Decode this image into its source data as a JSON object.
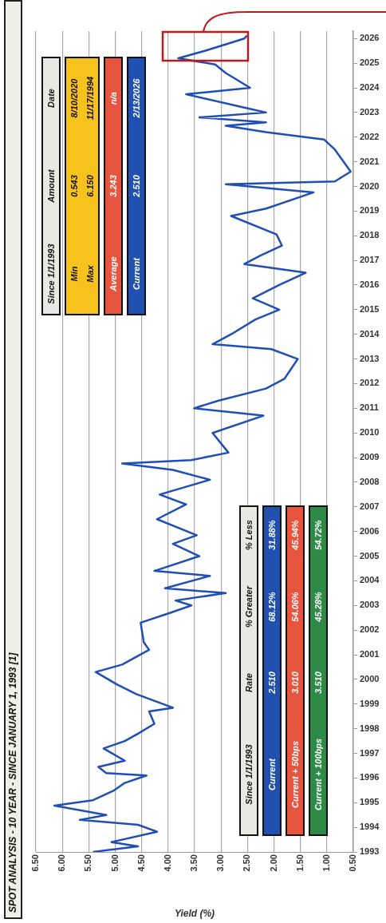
{
  "chart_data": {
    "type": "line",
    "orientation": "horizontal",
    "title": "SPOT ANALYSIS - 10 YEAR - SINCE JANUARY 1, 1993 [1]",
    "xlabel": "Yield (%)",
    "x": [
      1993.0,
      1993.23,
      1993.4,
      1993.82,
      1994.1,
      1994.3,
      1994.5,
      1994.88,
      1995.1,
      1995.5,
      1995.8,
      1996.1,
      1996.2,
      1996.45,
      1996.7,
      1997.2,
      1997.5,
      1997.8,
      1998.2,
      1998.7,
      1998.85,
      1999.4,
      1999.8,
      2000.3,
      2000.6,
      2001.2,
      2001.5,
      2002.3,
      2002.7,
      2003.0,
      2003.2,
      2003.5,
      2003.7,
      2004.2,
      2004.4,
      2005.0,
      2005.5,
      2005.85,
      2006.5,
      2007.1,
      2007.5,
      2008.1,
      2008.5,
      2008.76,
      2008.9,
      2009.2,
      2010.0,
      2010.7,
      2011.0,
      2011.3,
      2011.8,
      2012.2,
      2013.0,
      2013.4,
      2013.6,
      2014.0,
      2014.6,
      2015.0,
      2015.46,
      2016.0,
      2016.5,
      2016.85,
      2017.2,
      2017.6,
      2018.05,
      2018.8,
      2019.1,
      2019.76,
      2020.09,
      2020.2,
      2020.6,
      2021.05,
      2021.5,
      2021.9,
      2022.2,
      2022.46,
      2022.6,
      2022.8,
      2023.0,
      2023.2,
      2023.74,
      2024.0,
      2024.6,
      2024.95,
      2025.2,
      2025.5,
      2025.8,
      2026.0,
      2026.12
    ],
    "series": [
      {
        "color": "#1f4fb4",
        "values": [
          5.42,
          4.57,
          5.07,
          4.21,
          4.57,
          5.67,
          5.17,
          6.15,
          5.42,
          5.02,
          4.82,
          4.41,
          5.17,
          5.32,
          4.82,
          5.22,
          4.82,
          4.57,
          4.26,
          4.36,
          3.91,
          4.6,
          4.97,
          5.37,
          4.87,
          4.36,
          4.46,
          4.52,
          3.96,
          3.56,
          3.86,
          2.91,
          4.06,
          3.21,
          4.26,
          3.41,
          3.91,
          3.46,
          4.21,
          3.66,
          4.16,
          3.21,
          3.91,
          4.87,
          3.56,
          2.86,
          3.16,
          2.2,
          3.51,
          3.06,
          2.15,
          1.8,
          1.55,
          2.05,
          3.16,
          2.81,
          2.35,
          1.9,
          2.4,
          1.9,
          1.4,
          2.56,
          2.25,
          1.85,
          1.95,
          2.81,
          2.15,
          1.25,
          2.91,
          0.85,
          0.55,
          0.7,
          0.85,
          1.05,
          2.15,
          2.91,
          2.15,
          3.41,
          2.15,
          2.56,
          3.66,
          2.45,
          2.91,
          3.11,
          3.81,
          3.31,
          2.86,
          2.56,
          2.51
        ]
      }
    ],
    "ylim": [
      1993,
      2026.3
    ],
    "yticks": [
      1993,
      1994,
      1995,
      1996,
      1997,
      1998,
      1999,
      2000,
      2001,
      2002,
      2003,
      2004,
      2005,
      2006,
      2007,
      2008,
      2009,
      2010,
      2011,
      2012,
      2013,
      2014,
      2015,
      2016,
      2017,
      2018,
      2019,
      2020,
      2021,
      2022,
      2023,
      2024,
      2025,
      2026
    ],
    "xlim": [
      6.5,
      0.5
    ],
    "xticks": [
      {
        "value": 6.5,
        "label": "6.50"
      },
      {
        "value": 6,
        "label": "6.00"
      },
      {
        "value": 5.5,
        "label": "5.50"
      },
      {
        "value": 5,
        "label": "5.00"
      },
      {
        "value": 4.5,
        "label": "4.50"
      },
      {
        "value": 4,
        "label": "4.00"
      },
      {
        "value": 3.5,
        "label": "3.50"
      },
      {
        "value": 3,
        "label": "3.00"
      },
      {
        "value": 2.5,
        "label": "2.50"
      },
      {
        "value": 2,
        "label": "2.00"
      },
      {
        "value": 1.5,
        "label": "1.50"
      },
      {
        "value": 1,
        "label": "1.00"
      },
      {
        "value": 0.5,
        "label": "0.50"
      }
    ],
    "grid": "x",
    "legend": false,
    "annotations": [
      "Since 1/1/1993",
      "Amount",
      "Date",
      "Min",
      "0.543",
      "8/10/2020",
      "Max",
      "6.150",
      "11/17/1994",
      "Average",
      "3.243",
      "n/a",
      "Current",
      "2.510",
      "2/13/2026",
      "Since 1/1/1993",
      "Rate",
      "% Greater",
      "% Less",
      "Current",
      "2.510",
      "68.12%",
      "31.88%",
      "Current + 50bps",
      "3.010",
      "54.06%",
      "45.94%",
      "Current + 100bps",
      "3.510",
      "45.28%",
      "54.72%"
    ]
  }
}
